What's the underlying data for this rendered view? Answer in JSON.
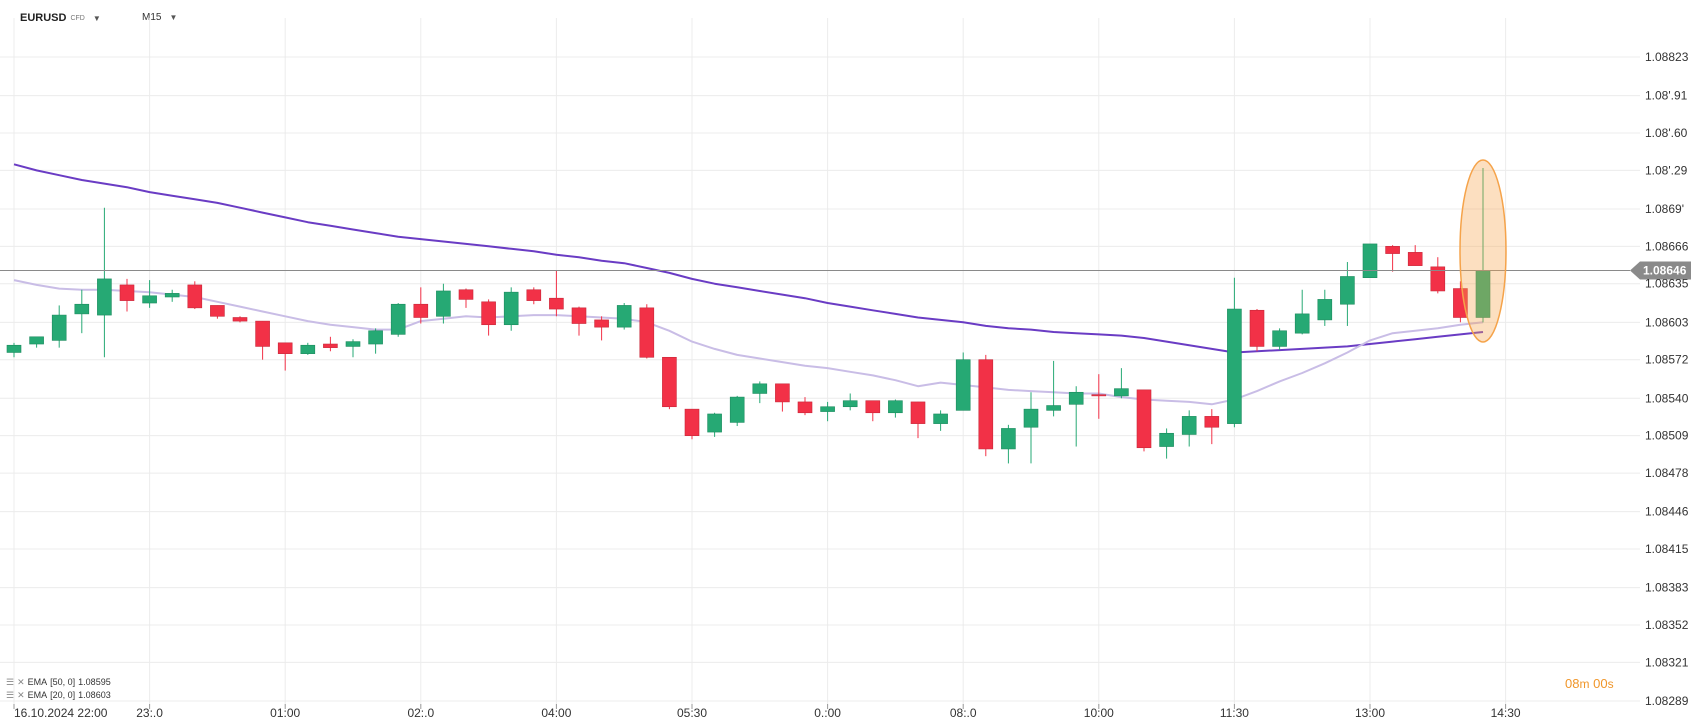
{
  "toolbar": {
    "symbol": "EURUSD",
    "badge": "CFD",
    "interval": "M15",
    "symbol_caret_icon": "caret-down-icon",
    "interval_caret_icon": "caret-down-icon"
  },
  "legend": [
    {
      "label": "EMA",
      "params": "[50, 0]",
      "value": "1.08595"
    },
    {
      "label": "EMA",
      "params": "[20, 0]",
      "value": "1.08603"
    }
  ],
  "countdown": {
    "minutes": "08",
    "m_label": "m",
    "seconds": "00",
    "s_label": "s"
  },
  "colors": {
    "up": "#26a974",
    "down": "#f23147",
    "ema50": "#6a3cc4",
    "ema20": "#c9bde6",
    "highlight": "#f5a34a",
    "price_line": "#8a8a8a",
    "grid": "#ececec"
  },
  "chart_data": {
    "type": "candlestick",
    "title": "EURUSD",
    "interval": "M15",
    "ylim": [
      1.08289,
      1.08823
    ],
    "y_ticks": [
      "1.08823",
      "1.08791",
      "1.08760",
      "1.08729",
      "1.08697",
      "1.08666",
      "1.08635",
      "1.08603",
      "1.08572",
      "1.08540",
      "1.08509",
      "1.08478",
      "1.08446",
      "1.08415",
      "1.08383",
      "1.08352",
      "1.08321",
      "1.08289"
    ],
    "y_tick_labels": [
      "1.08823",
      "1.08'.91",
      "1.08'.60",
      "1.08'.29",
      "1.0869'",
      "1.08666",
      "1.08635",
      "1.08603",
      "1.08572",
      "1.08540",
      "1.08509",
      "1.08478",
      "1.08446",
      "1.08415",
      "1.08383",
      "1.08352",
      "1.08321",
      "1.08289"
    ],
    "last_price": "1.08646",
    "x_labels": [
      {
        "i": 0,
        "text": "16.10.2024  22:00"
      },
      {
        "i": 6,
        "text": "23:.0"
      },
      {
        "i": 12,
        "text": "01:00"
      },
      {
        "i": 18,
        "text": "02:.0"
      },
      {
        "i": 24,
        "text": "04:00"
      },
      {
        "i": 30,
        "text": "05:30"
      },
      {
        "i": 36,
        "text": "0.:00"
      },
      {
        "i": 42,
        "text": "08:.0"
      },
      {
        "i": 48,
        "text": "10:00"
      },
      {
        "i": 54,
        "text": "11:30"
      },
      {
        "i": 60,
        "text": "13:00"
      },
      {
        "i": 66,
        "text": "14:30"
      }
    ],
    "candles": [
      {
        "o": 1.08578,
        "h": 1.08586,
        "l": 1.08574,
        "c": 1.08584
      },
      {
        "o": 1.08585,
        "h": 1.0859,
        "l": 1.08582,
        "c": 1.08591
      },
      {
        "o": 1.08588,
        "h": 1.08617,
        "l": 1.08582,
        "c": 1.08609
      },
      {
        "o": 1.0861,
        "h": 1.0863,
        "l": 1.08594,
        "c": 1.08618
      },
      {
        "o": 1.08609,
        "h": 1.08698,
        "l": 1.08574,
        "c": 1.08639
      },
      {
        "o": 1.08634,
        "h": 1.08639,
        "l": 1.08612,
        "c": 1.08621
      },
      {
        "o": 1.08619,
        "h": 1.08638,
        "l": 1.08615,
        "c": 1.08625
      },
      {
        "o": 1.08624,
        "h": 1.0863,
        "l": 1.0862,
        "c": 1.08627
      },
      {
        "o": 1.08634,
        "h": 1.08637,
        "l": 1.08614,
        "c": 1.08615
      },
      {
        "o": 1.08617,
        "h": 1.08617,
        "l": 1.08606,
        "c": 1.08608
      },
      {
        "o": 1.08607,
        "h": 1.08608,
        "l": 1.08603,
        "c": 1.08604
      },
      {
        "o": 1.08604,
        "h": 1.08604,
        "l": 1.08572,
        "c": 1.08583
      },
      {
        "o": 1.08586,
        "h": 1.08586,
        "l": 1.08563,
        "c": 1.08577
      },
      {
        "o": 1.08577,
        "h": 1.08586,
        "l": 1.08576,
        "c": 1.08584
      },
      {
        "o": 1.08585,
        "h": 1.08591,
        "l": 1.08579,
        "c": 1.08582
      },
      {
        "o": 1.08583,
        "h": 1.08589,
        "l": 1.08574,
        "c": 1.08587
      },
      {
        "o": 1.08585,
        "h": 1.08598,
        "l": 1.08577,
        "c": 1.08596
      },
      {
        "o": 1.08593,
        "h": 1.08619,
        "l": 1.08591,
        "c": 1.08618
      },
      {
        "o": 1.08618,
        "h": 1.08632,
        "l": 1.08602,
        "c": 1.08607
      },
      {
        "o": 1.08608,
        "h": 1.08635,
        "l": 1.08602,
        "c": 1.08629
      },
      {
        "o": 1.0863,
        "h": 1.08631,
        "l": 1.08615,
        "c": 1.08622
      },
      {
        "o": 1.0862,
        "h": 1.08622,
        "l": 1.08592,
        "c": 1.08601
      },
      {
        "o": 1.08601,
        "h": 1.08632,
        "l": 1.08596,
        "c": 1.08628
      },
      {
        "o": 1.0863,
        "h": 1.08632,
        "l": 1.08618,
        "c": 1.08621
      },
      {
        "o": 1.08623,
        "h": 1.08646,
        "l": 1.08608,
        "c": 1.08614
      },
      {
        "o": 1.08615,
        "h": 1.08616,
        "l": 1.08592,
        "c": 1.08602
      },
      {
        "o": 1.08605,
        "h": 1.08608,
        "l": 1.08588,
        "c": 1.08599
      },
      {
        "o": 1.08599,
        "h": 1.08619,
        "l": 1.08597,
        "c": 1.08617
      },
      {
        "o": 1.08615,
        "h": 1.08618,
        "l": 1.08573,
        "c": 1.08574
      },
      {
        "o": 1.08574,
        "h": 1.08574,
        "l": 1.08531,
        "c": 1.08533
      },
      {
        "o": 1.08531,
        "h": 1.08531,
        "l": 1.08506,
        "c": 1.08509
      },
      {
        "o": 1.08512,
        "h": 1.08528,
        "l": 1.08508,
        "c": 1.08527
      },
      {
        "o": 1.0852,
        "h": 1.08542,
        "l": 1.08517,
        "c": 1.08541
      },
      {
        "o": 1.08544,
        "h": 1.08554,
        "l": 1.08536,
        "c": 1.08552
      },
      {
        "o": 1.08552,
        "h": 1.08552,
        "l": 1.08529,
        "c": 1.08537
      },
      {
        "o": 1.08537,
        "h": 1.08541,
        "l": 1.08526,
        "c": 1.08528
      },
      {
        "o": 1.08529,
        "h": 1.08537,
        "l": 1.08521,
        "c": 1.08533
      },
      {
        "o": 1.08533,
        "h": 1.08544,
        "l": 1.0853,
        "c": 1.08538
      },
      {
        "o": 1.08538,
        "h": 1.08538,
        "l": 1.08521,
        "c": 1.08528
      },
      {
        "o": 1.08528,
        "h": 1.08539,
        "l": 1.08524,
        "c": 1.08538
      },
      {
        "o": 1.08537,
        "h": 1.08537,
        "l": 1.08507,
        "c": 1.08519
      },
      {
        "o": 1.08519,
        "h": 1.0853,
        "l": 1.08513,
        "c": 1.08527
      },
      {
        "o": 1.0853,
        "h": 1.08578,
        "l": 1.0853,
        "c": 1.08572
      },
      {
        "o": 1.08572,
        "h": 1.08576,
        "l": 1.08492,
        "c": 1.08498
      },
      {
        "o": 1.08498,
        "h": 1.08518,
        "l": 1.08486,
        "c": 1.08515
      },
      {
        "o": 1.08516,
        "h": 1.08545,
        "l": 1.08486,
        "c": 1.08531
      },
      {
        "o": 1.0853,
        "h": 1.08571,
        "l": 1.08525,
        "c": 1.08534
      },
      {
        "o": 1.08535,
        "h": 1.0855,
        "l": 1.085,
        "c": 1.08545
      },
      {
        "o": 1.08543,
        "h": 1.0856,
        "l": 1.08523,
        "c": 1.08542
      },
      {
        "o": 1.08542,
        "h": 1.08565,
        "l": 1.0854,
        "c": 1.08548
      },
      {
        "o": 1.08547,
        "h": 1.08547,
        "l": 1.08496,
        "c": 1.08499
      },
      {
        "o": 1.085,
        "h": 1.08515,
        "l": 1.0849,
        "c": 1.08511
      },
      {
        "o": 1.0851,
        "h": 1.0853,
        "l": 1.085,
        "c": 1.08525
      },
      {
        "o": 1.08525,
        "h": 1.08531,
        "l": 1.08502,
        "c": 1.08516
      },
      {
        "o": 1.08519,
        "h": 1.0864,
        "l": 1.08516,
        "c": 1.08614
      },
      {
        "o": 1.08613,
        "h": 1.08614,
        "l": 1.08579,
        "c": 1.08583
      },
      {
        "o": 1.08583,
        "h": 1.08598,
        "l": 1.0858,
        "c": 1.08596
      },
      {
        "o": 1.08594,
        "h": 1.0863,
        "l": 1.08593,
        "c": 1.0861
      },
      {
        "o": 1.08605,
        "h": 1.0863,
        "l": 1.086,
        "c": 1.08622
      },
      {
        "o": 1.08618,
        "h": 1.08653,
        "l": 1.086,
        "c": 1.08641
      },
      {
        "o": 1.0864,
        "h": 1.08668,
        "l": 1.0864,
        "c": 1.08668
      },
      {
        "o": 1.08666,
        "h": 1.08667,
        "l": 1.08645,
        "c": 1.0866
      },
      {
        "o": 1.08661,
        "h": 1.08667,
        "l": 1.0865,
        "c": 1.0865
      },
      {
        "o": 1.08649,
        "h": 1.08657,
        "l": 1.08627,
        "c": 1.08629
      },
      {
        "o": 1.08631,
        "h": 1.08637,
        "l": 1.08603,
        "c": 1.08607
      },
      {
        "o": 1.08607,
        "h": 1.08731,
        "l": 1.08603,
        "c": 1.08646
      }
    ],
    "series": [
      {
        "name": "EMA [50, 0]",
        "values": [
          1.08734,
          1.08729,
          1.08725,
          1.08721,
          1.08718,
          1.08715,
          1.08711,
          1.08708,
          1.08705,
          1.08702,
          1.08698,
          1.08694,
          1.0869,
          1.08686,
          1.08683,
          1.0868,
          1.08677,
          1.08674,
          1.08672,
          1.0867,
          1.08668,
          1.08666,
          1.08664,
          1.08662,
          1.08659,
          1.08657,
          1.08654,
          1.08652,
          1.08648,
          1.08644,
          1.08639,
          1.08635,
          1.08632,
          1.08629,
          1.08626,
          1.08623,
          1.08619,
          1.08616,
          1.08613,
          1.0861,
          1.08607,
          1.08605,
          1.08603,
          1.086,
          1.08598,
          1.08597,
          1.08595,
          1.08594,
          1.08593,
          1.08592,
          1.0859,
          1.08587,
          1.08584,
          1.08581,
          1.08578,
          1.08579,
          1.0858,
          1.08581,
          1.08582,
          1.08583,
          1.08585,
          1.08587,
          1.08589,
          1.08591,
          1.08593,
          1.08595
        ]
      },
      {
        "name": "EMA [20, 0]",
        "values": [
          1.08638,
          1.08634,
          1.08631,
          1.0863,
          1.0863,
          1.08629,
          1.08628,
          1.08626,
          1.08624,
          1.0862,
          1.08616,
          1.08612,
          1.08608,
          1.08604,
          1.08601,
          1.08599,
          1.08597,
          1.08597,
          1.08604,
          1.08606,
          1.08608,
          1.08607,
          1.08608,
          1.08609,
          1.08609,
          1.08608,
          1.08607,
          1.08606,
          1.08603,
          1.08596,
          1.08587,
          1.08581,
          1.08576,
          1.08573,
          1.0857,
          1.08567,
          1.08565,
          1.08562,
          1.08559,
          1.08555,
          1.0855,
          1.08553,
          1.08551,
          1.08549,
          1.08547,
          1.08546,
          1.08545,
          1.08544,
          1.08544,
          1.08541,
          1.08539,
          1.08538,
          1.08537,
          1.08535,
          1.08539,
          1.08546,
          1.08554,
          1.08561,
          1.08569,
          1.08578,
          1.08588,
          1.08594,
          1.08596,
          1.08598,
          1.08601,
          1.08603
        ]
      }
    ],
    "highlight_candle_index": 65,
    "grid": true
  }
}
